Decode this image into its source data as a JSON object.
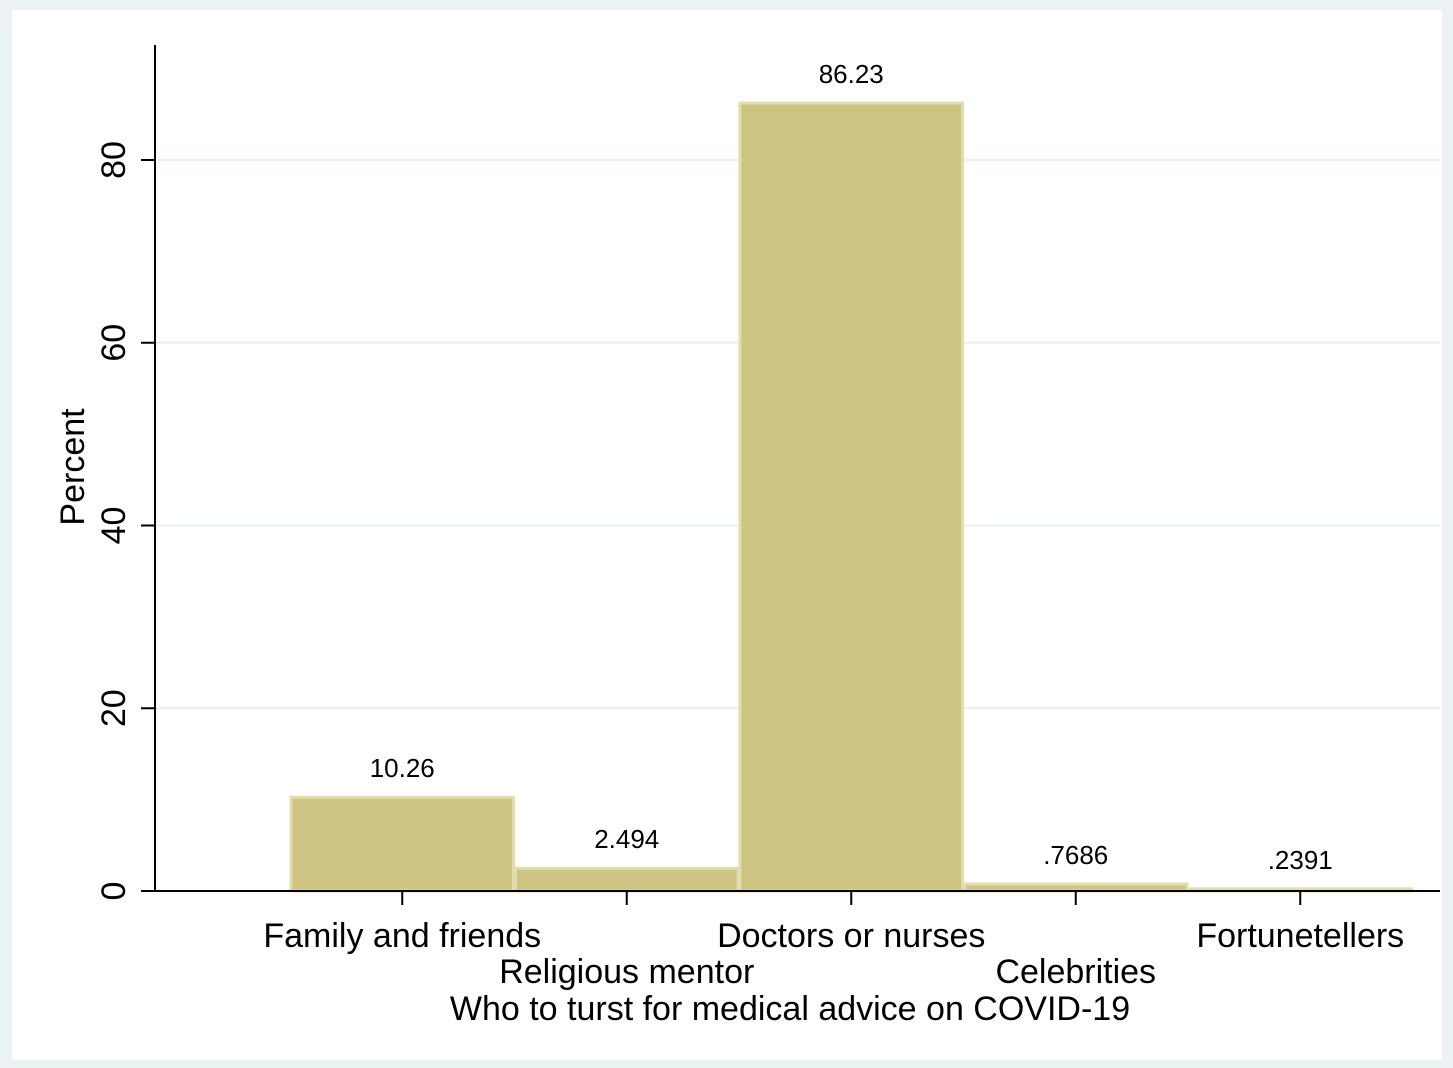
{
  "chart_data": {
    "type": "bar",
    "categories": [
      "Family and friends",
      "Religious mentor",
      "Doctors or nurses",
      "Celebrities",
      "Fortunetellers"
    ],
    "values": [
      10.26,
      2.494,
      86.23,
      0.7686,
      0.2391
    ],
    "value_labels": [
      "10.26",
      "2.494",
      "86.23",
      ".7686",
      ".2391"
    ],
    "xlabel": "Who to turst for medical advice on COVID-19",
    "ylabel": "Percent",
    "ylim": [
      0,
      92
    ],
    "yticks": [
      0,
      20,
      40,
      60,
      80
    ],
    "ytick_labels": [
      "0",
      "20",
      "40",
      "60",
      "80"
    ],
    "grid": true,
    "bar_color": "#cdc383",
    "bar_edge_color": "#e3dcae",
    "outer_background": "#eaf2f3"
  }
}
